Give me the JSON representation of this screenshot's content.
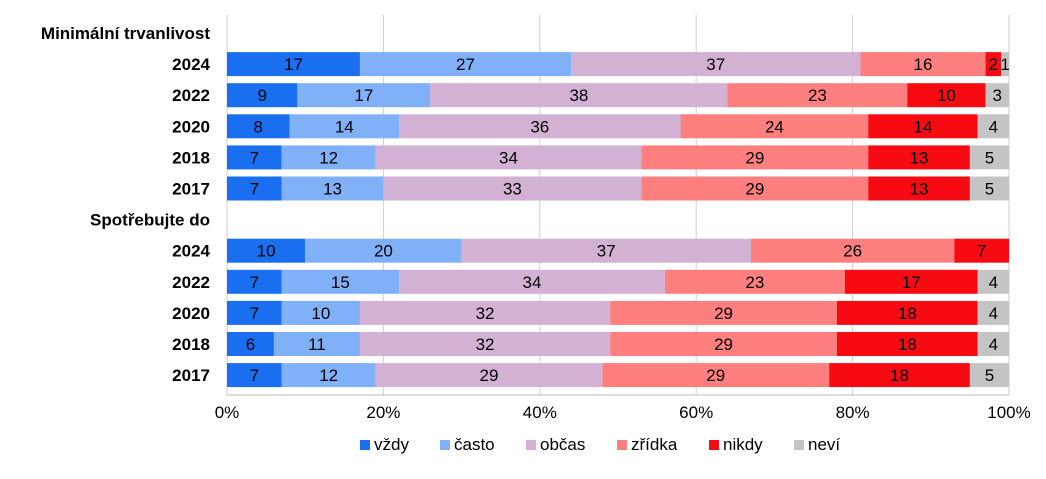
{
  "chart_data": {
    "type": "bar",
    "orientation": "horizontal",
    "stacked": true,
    "percent_stacked": true,
    "xlim": [
      0,
      100
    ],
    "x_ticks": [
      "0%",
      "20%",
      "40%",
      "60%",
      "80%",
      "100%"
    ],
    "grid": true,
    "legend_position": "bottom",
    "groups": [
      {
        "name": "Minimální trvanlivost",
        "rows": [
          {
            "label": "2024",
            "values": [
              17,
              27,
              37,
              16,
              2,
              1
            ]
          },
          {
            "label": "2022",
            "values": [
              9,
              17,
              38,
              23,
              10,
              3
            ]
          },
          {
            "label": "2020",
            "values": [
              8,
              14,
              36,
              24,
              14,
              4
            ]
          },
          {
            "label": "2018",
            "values": [
              7,
              12,
              34,
              29,
              13,
              5
            ]
          },
          {
            "label": "2017",
            "values": [
              7,
              13,
              33,
              29,
              13,
              5
            ]
          }
        ]
      },
      {
        "name": "Spotřebujte do",
        "rows": [
          {
            "label": "2024",
            "values": [
              10,
              20,
              37,
              26,
              7,
              null
            ]
          },
          {
            "label": "2022",
            "values": [
              7,
              15,
              34,
              23,
              17,
              4
            ]
          },
          {
            "label": "2020",
            "values": [
              7,
              10,
              32,
              29,
              18,
              4
            ]
          },
          {
            "label": "2018",
            "values": [
              6,
              11,
              32,
              29,
              18,
              4
            ]
          },
          {
            "label": "2017",
            "values": [
              7,
              12,
              29,
              29,
              18,
              5
            ]
          }
        ]
      }
    ],
    "series": [
      {
        "name": "vždy",
        "color": "#1a6ff0"
      },
      {
        "name": "často",
        "color": "#7fb0f8"
      },
      {
        "name": "občas",
        "color": "#d2b1d4"
      },
      {
        "name": "zřídka",
        "color": "#fe7f7e"
      },
      {
        "name": "nikdy",
        "color": "#f70a12"
      },
      {
        "name": "neví",
        "color": "#c4c4c4"
      }
    ]
  }
}
